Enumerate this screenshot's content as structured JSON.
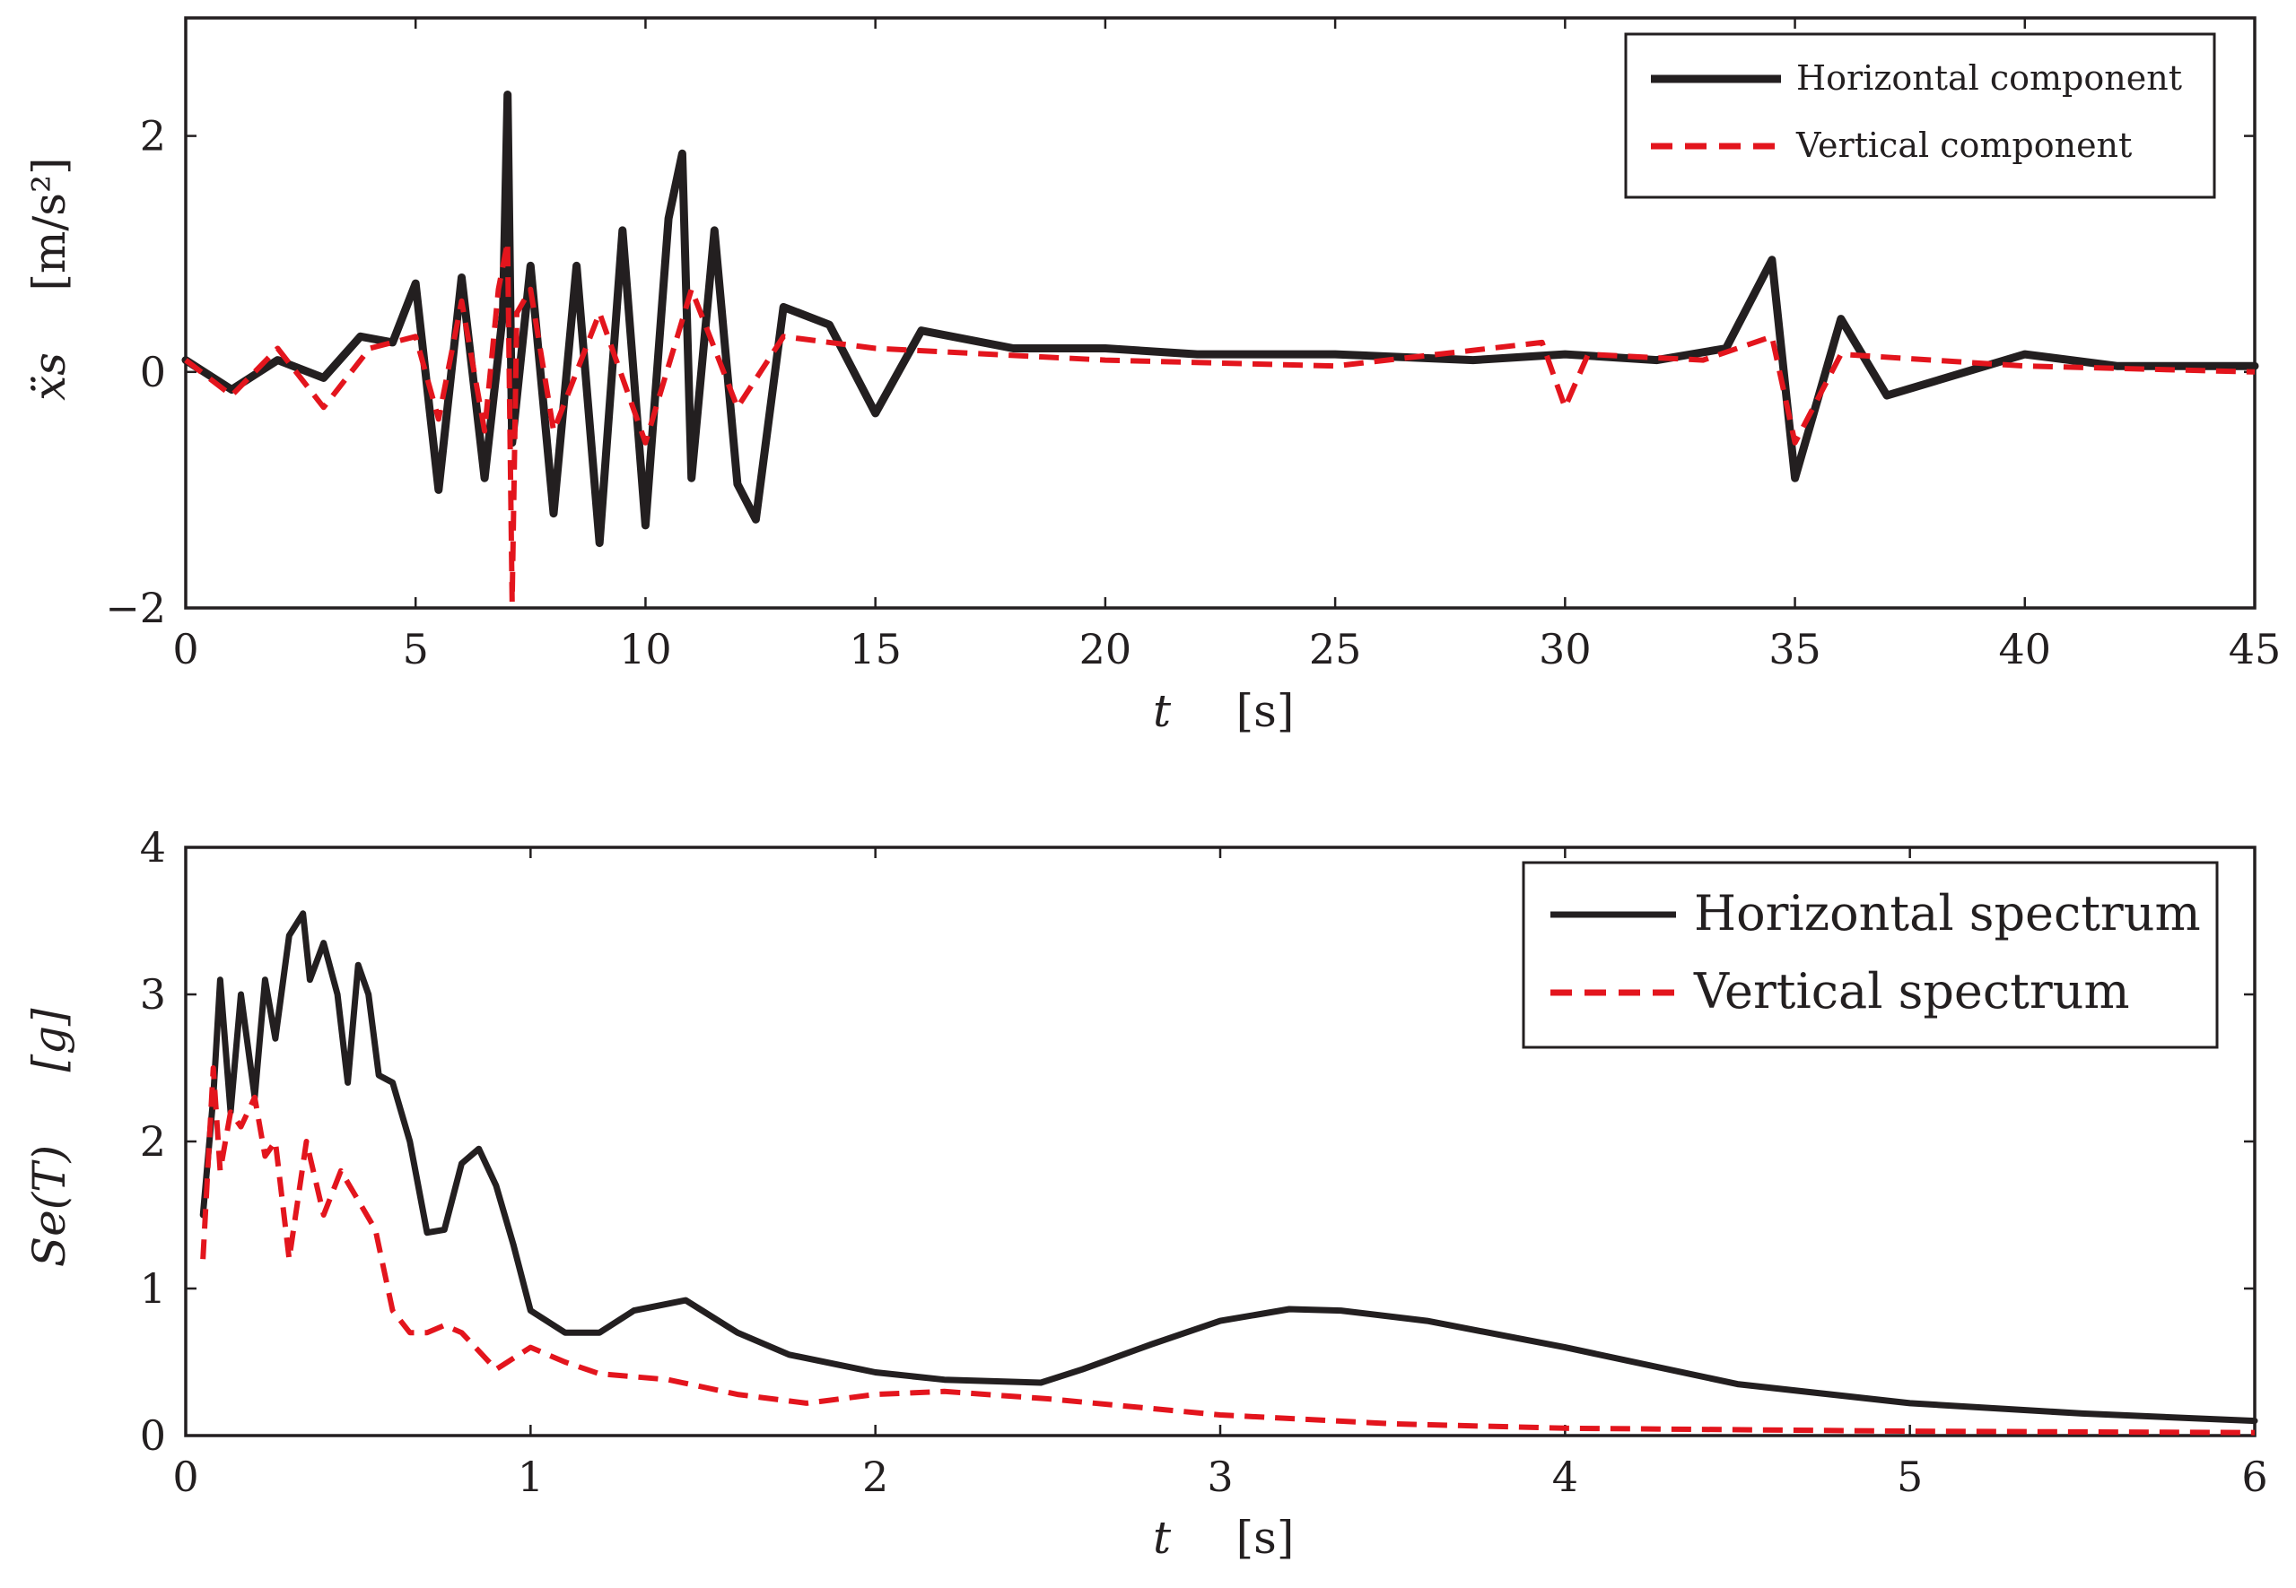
{
  "chart_data": [
    {
      "type": "line",
      "title": "",
      "xlabel": "t",
      "xunit": "[s]",
      "ylabel": "ẍs",
      "yunit": "[m/s²]",
      "xlim": [
        0,
        45
      ],
      "ylim": [
        -2,
        3
      ],
      "xticks": [
        0,
        5,
        10,
        15,
        20,
        25,
        30,
        35,
        40,
        45
      ],
      "xtick_labels": [
        "0",
        "5",
        "10",
        "15",
        "20",
        "25",
        "30",
        "35",
        "40",
        "45"
      ],
      "yticks": [
        -2,
        0,
        2
      ],
      "ytick_labels": [
        "−2",
        "0",
        "2"
      ],
      "legend_position": "top-right",
      "series": [
        {
          "name": "Horizontal component",
          "color": "#231f20",
          "style": "solid",
          "x": [
            0,
            1,
            2,
            3,
            3.8,
            4.5,
            5,
            5.5,
            6,
            6.5,
            6.9,
            7.0,
            7.1,
            7.5,
            8,
            8.5,
            9,
            9.5,
            10,
            10.5,
            10.8,
            11,
            11.5,
            12,
            12.4,
            13,
            14,
            15,
            16,
            18,
            20,
            22,
            25,
            28,
            30,
            32,
            33.5,
            34.5,
            35,
            36,
            37,
            40,
            42,
            45
          ],
          "y": [
            0.1,
            -0.15,
            0.1,
            -0.05,
            0.3,
            0.25,
            0.75,
            -1.0,
            0.8,
            -0.9,
            0.5,
            2.35,
            -0.6,
            0.9,
            -1.2,
            0.9,
            -1.45,
            1.2,
            -1.3,
            1.3,
            1.85,
            -0.9,
            1.2,
            -0.95,
            -1.25,
            0.55,
            0.4,
            -0.35,
            0.35,
            0.2,
            0.2,
            0.15,
            0.15,
            0.1,
            0.15,
            0.1,
            0.2,
            0.95,
            -0.9,
            0.45,
            -0.2,
            0.15,
            0.05,
            0.05
          ]
        },
        {
          "name": "Vertical component",
          "color": "#e3151d",
          "style": "dashed",
          "x": [
            0,
            1,
            2,
            3,
            4,
            5,
            5.5,
            6,
            6.5,
            6.8,
            7.0,
            7.1,
            7.2,
            7.5,
            8,
            9,
            10,
            11,
            12,
            13,
            15,
            20,
            25,
            29.5,
            30,
            30.5,
            33,
            34.5,
            35,
            36,
            40,
            45
          ],
          "y": [
            0.1,
            -0.2,
            0.2,
            -0.3,
            0.2,
            0.3,
            -0.4,
            0.6,
            -0.5,
            0.7,
            1.1,
            -1.95,
            0.5,
            0.7,
            -0.5,
            0.5,
            -0.6,
            0.7,
            -0.3,
            0.3,
            0.2,
            0.1,
            0.05,
            0.25,
            -0.3,
            0.15,
            0.1,
            0.3,
            -0.6,
            0.15,
            0.05,
            0.0
          ]
        }
      ]
    },
    {
      "type": "line",
      "title": "",
      "xlabel": "t",
      "xunit": "[s]",
      "ylabel": "Se(T)",
      "yunit": "[g]",
      "xlim": [
        0,
        6
      ],
      "ylim": [
        0,
        4
      ],
      "xticks": [
        0,
        1,
        2,
        3,
        4,
        5,
        6
      ],
      "xtick_labels": [
        "0",
        "1",
        "2",
        "3",
        "4",
        "5",
        "6"
      ],
      "yticks": [
        0,
        1,
        2,
        3,
        4
      ],
      "ytick_labels": [
        "0",
        "1",
        "2",
        "3",
        "4"
      ],
      "legend_position": "top-right",
      "series": [
        {
          "name": "Horizontal spectrum",
          "color": "#231f20",
          "style": "solid",
          "x": [
            0.05,
            0.08,
            0.1,
            0.13,
            0.16,
            0.2,
            0.23,
            0.26,
            0.3,
            0.34,
            0.36,
            0.4,
            0.44,
            0.47,
            0.5,
            0.53,
            0.56,
            0.6,
            0.65,
            0.7,
            0.75,
            0.8,
            0.85,
            0.9,
            0.95,
            1.0,
            1.1,
            1.2,
            1.3,
            1.45,
            1.6,
            1.75,
            2.0,
            2.2,
            2.48,
            2.6,
            2.8,
            3.0,
            3.2,
            3.35,
            3.6,
            4.0,
            4.5,
            5.0,
            5.5,
            6.0
          ],
          "y": [
            1.5,
            2.3,
            3.1,
            2.2,
            3.0,
            2.3,
            3.1,
            2.7,
            3.4,
            3.55,
            3.1,
            3.35,
            3.0,
            2.4,
            3.2,
            3.0,
            2.45,
            2.4,
            2.0,
            1.38,
            1.4,
            1.85,
            1.95,
            1.7,
            1.3,
            0.85,
            0.7,
            0.7,
            0.85,
            0.92,
            0.7,
            0.55,
            0.43,
            0.38,
            0.36,
            0.45,
            0.62,
            0.78,
            0.86,
            0.85,
            0.78,
            0.6,
            0.35,
            0.22,
            0.15,
            0.1
          ]
        },
        {
          "name": "Vertical spectrum",
          "color": "#e3151d",
          "style": "dashed",
          "x": [
            0.05,
            0.08,
            0.1,
            0.13,
            0.16,
            0.2,
            0.23,
            0.26,
            0.3,
            0.35,
            0.4,
            0.45,
            0.5,
            0.55,
            0.6,
            0.65,
            0.7,
            0.75,
            0.8,
            0.9,
            1.0,
            1.1,
            1.2,
            1.4,
            1.6,
            1.8,
            2.0,
            2.2,
            2.5,
            3.0,
            3.5,
            4.0,
            5.0,
            6.0
          ],
          "y": [
            1.2,
            2.5,
            1.8,
            2.2,
            2.1,
            2.3,
            1.9,
            2.0,
            1.2,
            2.0,
            1.5,
            1.8,
            1.6,
            1.4,
            0.85,
            0.7,
            0.7,
            0.75,
            0.7,
            0.45,
            0.6,
            0.5,
            0.42,
            0.38,
            0.28,
            0.22,
            0.28,
            0.3,
            0.25,
            0.14,
            0.08,
            0.05,
            0.03,
            0.02
          ]
        }
      ]
    }
  ]
}
